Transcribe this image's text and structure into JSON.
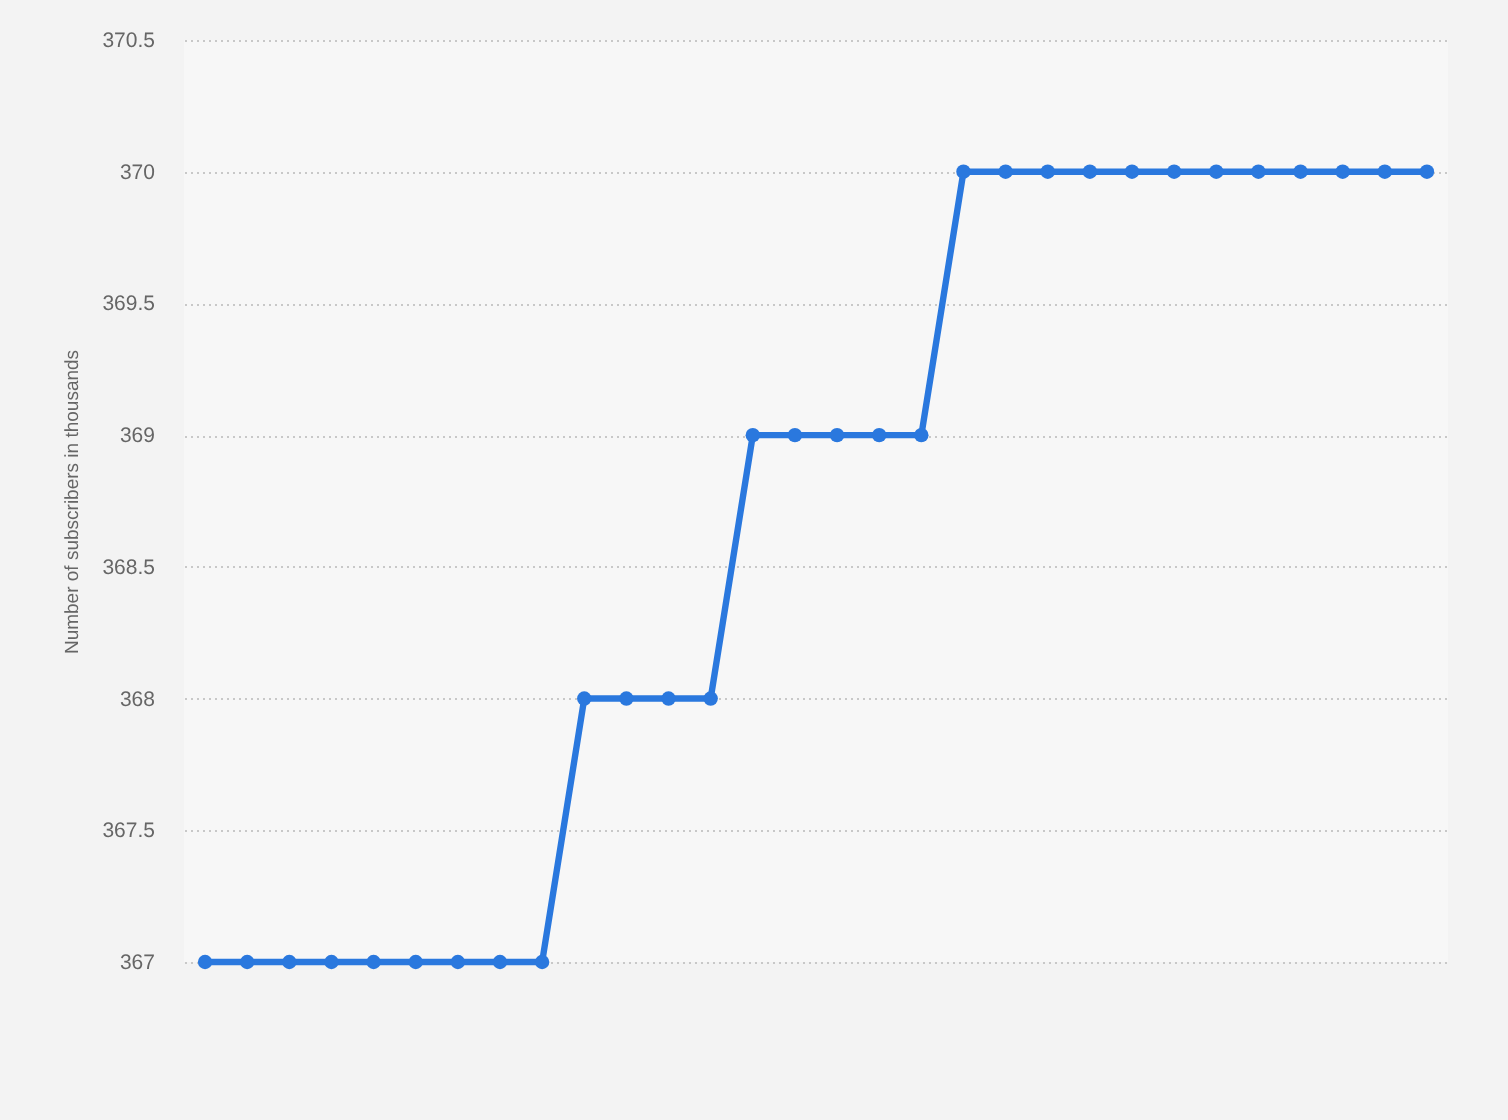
{
  "chart_data": {
    "type": "line",
    "ylabel": "Number of subscribers in thousands",
    "categories": [
      null,
      null,
      null,
      null,
      null,
      null,
      null,
      null,
      null,
      null,
      null,
      null,
      null,
      null,
      null,
      null,
      null,
      null,
      null,
      null,
      null,
      null,
      null,
      null,
      null,
      null,
      null,
      null,
      null,
      null
    ],
    "series": [
      {
        "color": "#2a78de",
        "values": [
          367,
          367,
          367,
          367,
          367,
          367,
          367,
          367,
          367,
          368,
          368,
          368,
          368,
          369,
          369,
          369,
          369,
          369,
          370,
          370,
          370,
          370,
          370,
          370,
          370,
          370,
          370,
          370,
          370,
          370
        ]
      }
    ],
    "ylim": [
      367,
      370.5
    ],
    "yticks": [
      367,
      367.5,
      368,
      368.5,
      369,
      369.5,
      370,
      370.5
    ],
    "grid": "y",
    "marker": "circle",
    "tick_labels": "y"
  }
}
